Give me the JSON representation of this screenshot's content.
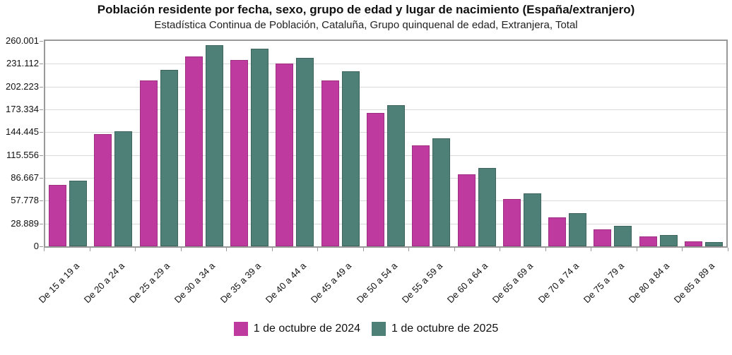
{
  "header": {
    "title": "Población residente por fecha, sexo, grupo de edad y lugar de nacimiento (España/extranjero)",
    "subtitle": "Estadística Continua de Población, Cataluña, Grupo quinquenal de edad, Extranjera, Total"
  },
  "chart_data": {
    "type": "bar",
    "title": "Población residente por fecha, sexo, grupo de edad y lugar de nacimiento (España/extranjero)",
    "subtitle": "Estadística Continua de Población, Cataluña, Grupo quinquenal de edad, Extranjera, Total",
    "categories": [
      "De 15 a 19 a",
      "De 20 a 24 a",
      "De 25 a 29 a",
      "De 30 a 34 a",
      "De 35 a 39 a",
      "De 40 a 44 a",
      "De 45 a 49 a",
      "De 50 a 54 a",
      "De 55 a 59 a",
      "De 60 a 64 a",
      "De 65 a 69 a",
      "De 70 a 74 a",
      "De 75 a 79 a",
      "De 80 a 84 a",
      "De 85 a 89 a"
    ],
    "series": [
      {
        "name": "1 de octubre de 2024",
        "color": "#be3a9e",
        "border_color": "#9c2f82",
        "values": [
          77500,
          142500,
          210000,
          240000,
          235500,
          231000,
          210000,
          168500,
          127500,
          91500,
          60000,
          37000,
          21500,
          12500,
          6500
        ]
      },
      {
        "name": "1 de octubre de 2025",
        "color": "#4e8077",
        "border_color": "#3c655e",
        "values": [
          83000,
          146000,
          223500,
          254500,
          250000,
          238500,
          222000,
          178500,
          137000,
          99000,
          67000,
          42000,
          25500,
          14000,
          5000
        ]
      }
    ],
    "ylim": [
      0,
      260001
    ],
    "yticks": [
      {
        "value": 260001,
        "label": "260.001"
      },
      {
        "value": 231112,
        "label": "231.112"
      },
      {
        "value": 202223,
        "label": "202.223"
      },
      {
        "value": 173334,
        "label": "173.334"
      },
      {
        "value": 144445,
        "label": "144.445"
      },
      {
        "value": 115556,
        "label": "115.556"
      },
      {
        "value": 86667,
        "label": "86.667"
      },
      {
        "value": 57778,
        "label": "57.778"
      },
      {
        "value": 28889,
        "label": "28.889"
      },
      {
        "value": 0,
        "label": "0"
      }
    ],
    "grid": true,
    "legend_position": "bottom",
    "colors": {
      "grid": "#d9d9d9",
      "axis": "#999999",
      "text": "#111111",
      "background": "#ffffff"
    }
  }
}
